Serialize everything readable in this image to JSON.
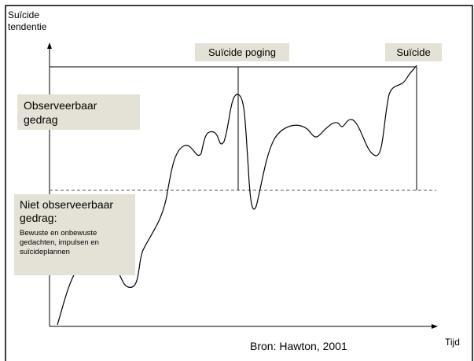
{
  "y_axis_label": [
    "Suïcide",
    "tendentie"
  ],
  "x_axis_label": "Tijd",
  "events": {
    "attempt": "Suïcide poging",
    "suicide": "Suïcide"
  },
  "zones": {
    "observable": [
      "Observeerbaar",
      "gedrag"
    ],
    "not_observable": {
      "title": [
        "Niet observeerbaar",
        "gedrag:"
      ],
      "detail": [
        "Bewuste en onbewuste",
        "gedachten, impulsen en",
        "suïcideplannen"
      ]
    }
  },
  "source": "Bron: Hawton, 2001"
}
